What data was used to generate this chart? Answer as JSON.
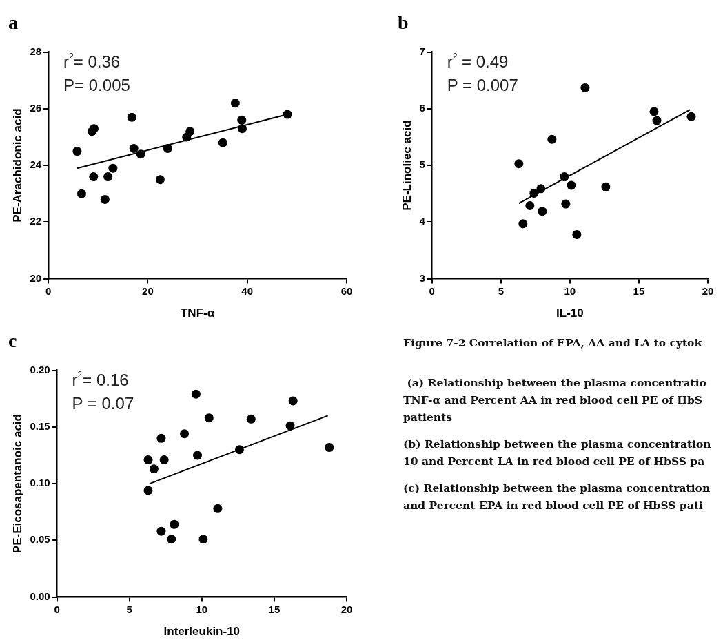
{
  "chart_data": [
    {
      "type": "scatter",
      "title": "a",
      "xlabel": "TNF-α",
      "ylabel": "PE-Arachidonic acid",
      "xlim": [
        0,
        60
      ],
      "xticks": [
        0,
        20,
        40,
        60
      ],
      "ylim": [
        20,
        28
      ],
      "yticks": [
        20,
        22,
        24,
        26,
        28
      ],
      "grid": false,
      "legend": false,
      "marker": "circle",
      "annotations": [
        "r$^{2}$= 0.36",
        "P= 0.005"
      ],
      "series": [
        {
          "type": "scatter",
          "color": "#000000",
          "x": [
            5.8,
            6.7,
            8.8,
            9.2,
            9.1,
            11.4,
            12.0,
            13.0,
            16.8,
            17.2,
            18.6,
            22.5,
            24.0,
            27.8,
            28.5,
            35.1,
            37.6,
            38.9,
            39.0,
            48.1
          ],
          "values": [
            24.5,
            23.0,
            25.2,
            25.3,
            23.6,
            22.8,
            23.6,
            23.9,
            25.7,
            24.6,
            24.4,
            23.5,
            24.6,
            25.0,
            25.2,
            24.8,
            26.2,
            25.6,
            25.3,
            25.8
          ]
        },
        {
          "type": "line",
          "marker": "none",
          "color": "#000000",
          "x": [
            5.8,
            48.1
          ],
          "values": [
            23.9,
            25.8
          ]
        }
      ]
    },
    {
      "type": "scatter",
      "title": "b",
      "xlabel": "IL-10",
      "ylabel": "PE-Linoliec acid",
      "xlim": [
        0,
        20
      ],
      "xticks": [
        0,
        5,
        10,
        15,
        20
      ],
      "ylim": [
        3,
        7
      ],
      "yticks": [
        3,
        4,
        5,
        6,
        7
      ],
      "grid": false,
      "legend": false,
      "marker": "circle",
      "annotations": [
        "r$^{2}$ = 0.49",
        "P = 0.007"
      ],
      "series": [
        {
          "type": "scatter",
          "color": "#000000",
          "x": [
            6.3,
            6.6,
            7.1,
            7.4,
            7.9,
            8.0,
            8.7,
            9.6,
            9.7,
            10.1,
            10.5,
            11.1,
            12.6,
            16.1,
            16.3,
            18.8
          ],
          "values": [
            5.03,
            3.97,
            4.29,
            4.51,
            4.59,
            4.19,
            5.46,
            4.8,
            4.32,
            4.65,
            3.78,
            6.37,
            4.62,
            5.95,
            5.79,
            5.86
          ]
        },
        {
          "type": "line",
          "marker": "none",
          "color": "#000000",
          "x": [
            6.3,
            18.7
          ],
          "values": [
            4.33,
            5.98
          ]
        }
      ]
    },
    {
      "type": "scatter",
      "title": "c",
      "xlabel": "Interleukin-10",
      "ylabel": "PE-Eicosapentanoic acid",
      "xlim": [
        0,
        20
      ],
      "xticks": [
        0,
        5,
        10,
        15,
        20
      ],
      "ylim": [
        0,
        0.2
      ],
      "yticks": [
        {
          "value": 0,
          "label": "0.00"
        },
        {
          "value": 0.05,
          "label": "0.05"
        },
        {
          "value": 0.1,
          "label": "0.10"
        },
        {
          "value": 0.15,
          "label": "0.15"
        },
        {
          "value": 0.2,
          "label": "0.20"
        }
      ],
      "grid": false,
      "legend": false,
      "marker": "circle",
      "annotations": [
        "r$^{2}$= 0.16",
        "P = 0.07"
      ],
      "series": [
        {
          "type": "scatter",
          "color": "#000000",
          "x": [
            6.3,
            6.3,
            6.7,
            7.2,
            7.2,
            7.4,
            7.9,
            8.1,
            8.8,
            9.6,
            9.7,
            10.1,
            10.5,
            11.1,
            12.6,
            13.4,
            16.1,
            16.3,
            18.8
          ],
          "values": [
            0.121,
            0.094,
            0.113,
            0.058,
            0.14,
            0.121,
            0.051,
            0.064,
            0.144,
            0.179,
            0.125,
            0.051,
            0.158,
            0.078,
            0.13,
            0.157,
            0.151,
            0.173,
            0.132
          ]
        },
        {
          "type": "line",
          "marker": "none",
          "color": "#000000",
          "x": [
            6.4,
            18.7
          ],
          "values": [
            0.1,
            0.16
          ]
        }
      ]
    },
    {
      "type": "other",
      "title": "Figure 7-2 Correlation of EPA, AA and LA to cytok",
      "annotations": [
        " (a) Relationship between the plasma concentratio",
        "TNF-α and Percent AA in red blood cell PE of HbS",
        "patients",
        "(b) Relationship between the plasma concentration",
        "10 and Percent LA in red blood cell PE of HbSS pa",
        "(c) Relationship between the plasma concentration",
        "and Percent EPA in red blood cell PE of HbSS pati"
      ]
    }
  ]
}
